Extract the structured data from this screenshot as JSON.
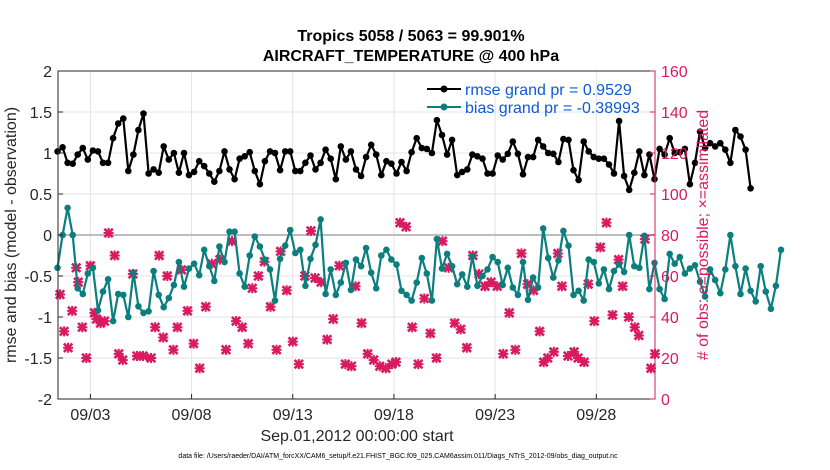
{
  "chart_data": {
    "type": "line",
    "title": "Tropics 5058 / 5063 = 99.901%",
    "subtitle": "AIRCRAFT_TEMPERATURE @ 400 hPa",
    "xlabel": "Sep.01,2012 00:00:00 start",
    "ylabel_left": "rmse and bias (model - observation)",
    "ylabel_right": "# of obs: o=possible; ×=assimilated",
    "footnote": "data file: /Users/raeder/DAI/ATM_forcXX/CAM6_setup/f.e21.FHIST_BGC.f09_025.CAM6assim.011/Diags_NTrS_2012-09/obs_diag_output.nc",
    "xlim": [
      1.4,
      30.9
    ],
    "ylim_left": [
      -2,
      2
    ],
    "ylim_right": [
      0,
      160
    ],
    "x_tick_labels": [
      "09/03",
      "09/08",
      "09/13",
      "09/18",
      "09/23",
      "09/28"
    ],
    "x_tick_values": [
      3,
      8,
      13,
      18,
      23,
      28
    ],
    "y_left_ticks": [
      -2,
      -1.5,
      -1,
      -0.5,
      0,
      0.5,
      1,
      1.5,
      2
    ],
    "y_left_tick_labels": [
      "-2",
      "-1.5",
      "-1",
      "-0.5",
      "0",
      "0.5",
      "1",
      "1.5",
      "2"
    ],
    "y_right_ticks": [
      0,
      20,
      40,
      60,
      80,
      100,
      120,
      140,
      160
    ],
    "y_right_tick_labels": [
      "0",
      "20",
      "40",
      "60",
      "80",
      "100",
      "120",
      "140",
      "160"
    ],
    "zero_line": 0,
    "x_start": 1.375,
    "x_step": 0.25,
    "legend": [
      {
        "name": "rmse grand pr = 0.9529",
        "color": "#000000"
      },
      {
        "name": "bias grand pr = -0.38993",
        "color": "#0c7e7e"
      }
    ],
    "series": [
      {
        "name": "rmse",
        "color": "#000000",
        "values": [
          1.02,
          1.07,
          0.88,
          0.87,
          0.98,
          1.06,
          0.92,
          1.03,
          1.02,
          0.88,
          0.88,
          1.18,
          1.36,
          1.42,
          0.78,
          0.98,
          1.28,
          1.48,
          0.75,
          0.8,
          0.76,
          1.08,
          0.92,
          1.0,
          0.76,
          1.0,
          0.73,
          0.77,
          0.9,
          0.84,
          0.75,
          0.65,
          0.78,
          1.02,
          0.8,
          0.68,
          0.93,
          0.96,
          1.01,
          0.78,
          0.62,
          0.9,
          1.02,
          1.0,
          0.79,
          1.02,
          1.02,
          0.78,
          0.78,
          0.88,
          0.97,
          0.8,
          0.88,
          1.04,
          0.93,
          0.68,
          1.08,
          0.92,
          1.02,
          0.8,
          0.72,
          0.95,
          1.1,
          0.98,
          0.73,
          0.9,
          0.87,
          0.75,
          0.89,
          0.78,
          1.01,
          1.18,
          1.06,
          1.05,
          1.0,
          1.4,
          1.22,
          0.98,
          1.16,
          0.73,
          0.77,
          0.8,
          0.98,
          0.96,
          0.93,
          0.75,
          0.75,
          0.97,
          0.92,
          0.99,
          1.14,
          0.99,
          0.74,
          0.95,
          0.95,
          1.16,
          1.08,
          1.0,
          0.99,
          0.89,
          1.17,
          1.16,
          0.79,
          0.67,
          1.14,
          1.02,
          0.95,
          0.93,
          0.93,
          0.86,
          0.75,
          1.39,
          0.72,
          0.55,
          0.76,
          1.02,
          0.73,
          0.98,
          0.68,
          1.05,
          0.98,
          1.18,
          1.0,
          1.01,
          1.05,
          0.62,
          0.88,
          1.26,
          1.06,
          1.12,
          1.08,
          1.12,
          1.04,
          0.88,
          1.28,
          1.2,
          1.04,
          0.57
        ]
      },
      {
        "name": "bias",
        "color": "#0c7e7e",
        "values": [
          -0.4,
          0.0,
          0.33,
          0.0,
          -0.65,
          -0.72,
          -0.47,
          -0.4,
          -0.92,
          -0.69,
          -0.54,
          -1.05,
          -0.72,
          -0.73,
          -1.0,
          -0.46,
          -0.87,
          -0.95,
          -0.93,
          -0.44,
          -0.73,
          -0.88,
          -0.77,
          -0.61,
          -0.33,
          -0.63,
          -0.41,
          -0.35,
          -0.49,
          -0.18,
          -0.38,
          -0.56,
          -0.14,
          -0.33,
          0.04,
          0.04,
          -0.47,
          -0.63,
          -0.25,
          -0.02,
          -0.14,
          -0.3,
          -0.42,
          -0.8,
          -0.29,
          -0.13,
          0.06,
          -0.22,
          -0.18,
          -0.62,
          -0.29,
          -0.12,
          0.19,
          -0.72,
          -0.42,
          -0.73,
          -0.58,
          -0.34,
          -0.67,
          -0.3,
          -0.38,
          -0.16,
          -0.46,
          -0.65,
          -0.25,
          -0.18,
          -0.3,
          -0.36,
          -0.68,
          -0.73,
          -0.8,
          -0.58,
          -0.28,
          -0.47,
          -0.8,
          -0.05,
          -0.41,
          -0.23,
          -0.38,
          -0.6,
          -0.48,
          -0.63,
          -0.26,
          -0.62,
          -0.5,
          -0.42,
          -0.27,
          -0.33,
          -0.61,
          -0.4,
          -0.64,
          -0.73,
          -0.33,
          -0.79,
          -0.52,
          -0.64,
          0.08,
          -0.28,
          -0.52,
          -0.31,
          0.05,
          -0.13,
          -0.73,
          -0.68,
          -0.8,
          -0.3,
          -0.33,
          -0.59,
          -0.42,
          -0.66,
          -0.44,
          -0.36,
          -0.45,
          0.0,
          -0.38,
          -0.4,
          -0.01,
          -0.66,
          -0.34,
          -0.66,
          -0.78,
          -0.23,
          -0.35,
          -0.27,
          -0.47,
          -0.41,
          -0.37,
          -0.57,
          -0.75,
          -0.42,
          -0.55,
          -0.71,
          -0.42,
          0.0,
          -0.38,
          -0.72,
          -0.41,
          -0.68,
          -0.81,
          -0.38,
          -0.69,
          -0.9,
          -0.62,
          -0.18
        ]
      },
      {
        "name": "# obs assimilated",
        "color": "#d81b60",
        "axis": "right",
        "x": [
          1.5,
          1.7,
          1.9,
          2.1,
          2.3,
          2.4,
          2.6,
          2.8,
          3.0,
          3.2,
          3.3,
          3.5,
          3.7,
          3.9,
          4.2,
          4.4,
          4.6,
          5.1,
          5.3,
          5.6,
          6.0,
          6.2,
          6.4,
          6.6,
          6.8,
          7.1,
          7.3,
          7.5,
          7.8,
          8.1,
          8.4,
          8.7,
          9.0,
          9.4,
          9.7,
          10.0,
          10.2,
          10.5,
          10.8,
          11.0,
          11.3,
          11.6,
          11.9,
          12.2,
          12.4,
          12.7,
          13.0,
          13.3,
          13.6,
          13.9,
          14.1,
          14.4,
          14.7,
          15.0,
          15.3,
          15.6,
          15.9,
          16.1,
          16.4,
          16.7,
          17.0,
          17.3,
          17.6,
          17.9,
          18.1,
          18.3,
          18.6,
          18.9,
          19.2,
          19.5,
          19.8,
          20.1,
          20.4,
          20.7,
          21.0,
          21.3,
          21.6,
          21.9,
          22.2,
          22.5,
          22.8,
          23.1,
          23.4,
          23.7,
          24.0,
          24.3,
          24.6,
          24.9,
          25.2,
          25.4,
          25.6,
          25.9,
          26.1,
          26.3,
          26.6,
          26.9,
          27.1,
          27.4,
          27.6,
          27.9,
          28.2,
          28.5,
          28.8,
          29.1,
          29.3,
          29.6,
          29.9,
          30.1,
          30.4,
          30.7,
          30.9
        ],
        "values": [
          51,
          33,
          25,
          43,
          64,
          57,
          35,
          20,
          65,
          42,
          39,
          37,
          38,
          81,
          70,
          22,
          19,
          61,
          21,
          21,
          20,
          35,
          70,
          30,
          60,
          24,
          35,
          63,
          43,
          27,
          15,
          45,
          66,
          68,
          24,
          77,
          38,
          35,
          27,
          54,
          60,
          67,
          45,
          24,
          72,
          53,
          28,
          17,
          60,
          82,
          59,
          57,
          29,
          39,
          65,
          17,
          16,
          55,
          37,
          22,
          19,
          16,
          15,
          17,
          18,
          86,
          84,
          35,
          17,
          49,
          32,
          20,
          77,
          64,
          37,
          34,
          25,
          70,
          61,
          55,
          57,
          55,
          22,
          42,
          24,
          71,
          56,
          53,
          33,
          18,
          20,
          23,
          71,
          55,
          21,
          23,
          20,
          18,
          56,
          38,
          74,
          86,
          41,
          68,
          55,
          40,
          35,
          31,
          78,
          15,
          22
        ]
      }
    ]
  }
}
